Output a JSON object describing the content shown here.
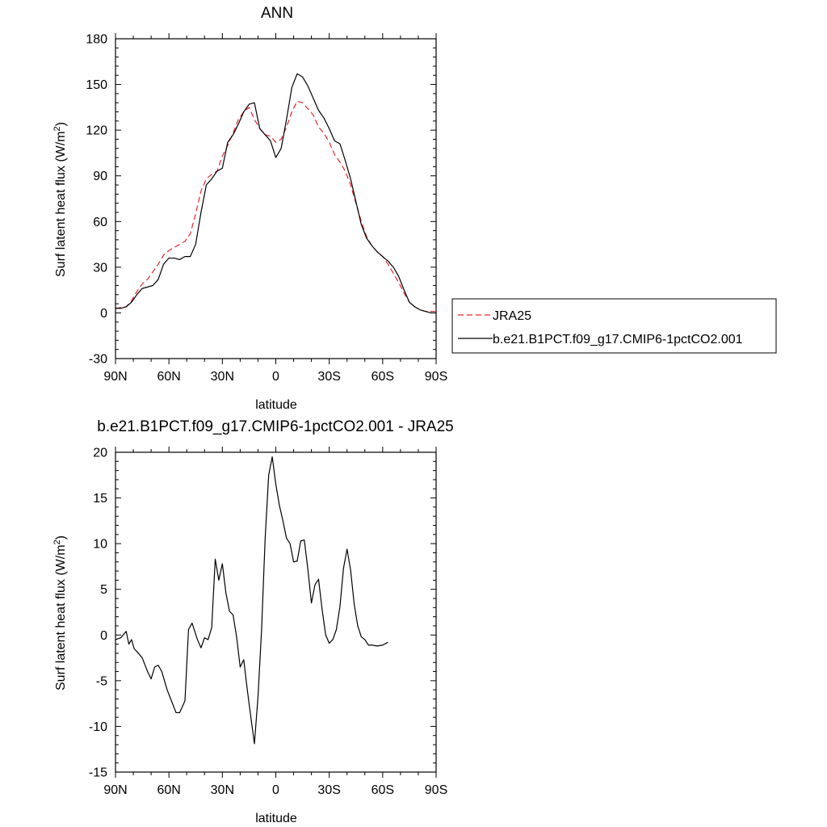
{
  "chart_data": [
    {
      "type": "line",
      "title": "ANN",
      "xlabel": "latitude",
      "ylabel": "Surf latent heat flux (W/m",
      "ylabel_sup": "2",
      "ylabel_close": ")",
      "xlim": [
        90,
        -90
      ],
      "ylim": [
        -30,
        180
      ],
      "xticks": [
        {
          "value": 90,
          "label": "90N"
        },
        {
          "value": 60,
          "label": "60N"
        },
        {
          "value": 30,
          "label": "30N"
        },
        {
          "value": 0,
          "label": "0"
        },
        {
          "value": -30,
          "label": "30S"
        },
        {
          "value": -60,
          "label": "60S"
        },
        {
          "value": -90,
          "label": "90S"
        }
      ],
      "yticks": [
        {
          "value": 180,
          "label": "180"
        },
        {
          "value": 150,
          "label": "150"
        },
        {
          "value": 120,
          "label": "120"
        },
        {
          "value": 90,
          "label": "90"
        },
        {
          "value": 60,
          "label": "60"
        },
        {
          "value": 30,
          "label": "30"
        },
        {
          "value": 0,
          "label": "0"
        },
        {
          "value": -30,
          "label": "-30"
        }
      ],
      "legend_position": "right",
      "series": [
        {
          "name": "JRA25",
          "color": "#e8262b",
          "dash": "dashed",
          "points": [
            [
              90,
              3
            ],
            [
              87,
              3.5
            ],
            [
              84,
              4
            ],
            [
              81,
              8
            ],
            [
              78,
              14
            ],
            [
              75,
              19
            ],
            [
              72,
              22
            ],
            [
              69,
              27
            ],
            [
              66,
              32
            ],
            [
              63,
              38
            ],
            [
              60,
              41
            ],
            [
              57,
              43
            ],
            [
              54,
              45
            ],
            [
              51,
              47
            ],
            [
              48,
              52
            ],
            [
              45,
              65
            ],
            [
              42,
              80
            ],
            [
              39,
              88
            ],
            [
              36,
              91
            ],
            [
              33,
              93
            ],
            [
              30,
              103
            ],
            [
              27,
              110
            ],
            [
              24,
              118
            ],
            [
              21,
              127
            ],
            [
              18,
              132
            ],
            [
              15,
              135
            ],
            [
              12,
              127
            ],
            [
              9,
              121
            ],
            [
              6,
              117
            ],
            [
              3,
              116
            ],
            [
              0,
              112
            ],
            [
              -3,
              114
            ],
            [
              -6,
              122
            ],
            [
              -9,
              132
            ],
            [
              -12,
              139
            ],
            [
              -15,
              138
            ],
            [
              -18,
              134
            ],
            [
              -21,
              130
            ],
            [
              -24,
              122
            ],
            [
              -27,
              118
            ],
            [
              -30,
              112
            ],
            [
              -33,
              104
            ],
            [
              -36,
              99
            ],
            [
              -39,
              93
            ],
            [
              -42,
              84
            ],
            [
              -45,
              72
            ],
            [
              -48,
              60
            ],
            [
              -51,
              50
            ],
            [
              -54,
              44
            ],
            [
              -57,
              40
            ],
            [
              -60,
              37
            ],
            [
              -63,
              32
            ],
            [
              -66,
              26
            ],
            [
              -69,
              20
            ],
            [
              -72,
              13
            ],
            [
              -75,
              7
            ],
            [
              -78,
              4
            ],
            [
              -81,
              2
            ],
            [
              -84,
              1
            ],
            [
              -87,
              1
            ],
            [
              -90,
              1
            ]
          ]
        },
        {
          "name": "b.e21.B1PCT.f09_g17.CMIP6-1pctCO2.001",
          "color": "#000000",
          "dash": "solid",
          "points": [
            [
              90,
              3
            ],
            [
              87,
              3
            ],
            [
              84,
              4
            ],
            [
              81,
              7
            ],
            [
              78,
              12
            ],
            [
              75,
              16
            ],
            [
              72,
              17
            ],
            [
              69,
              18
            ],
            [
              66,
              22
            ],
            [
              63,
              32
            ],
            [
              60,
              36
            ],
            [
              57,
              36
            ],
            [
              54,
              35
            ],
            [
              51,
              37
            ],
            [
              48,
              37
            ],
            [
              45,
              45
            ],
            [
              42,
              66
            ],
            [
              39,
              84
            ],
            [
              36,
              88
            ],
            [
              33,
              93
            ],
            [
              30,
              95
            ],
            [
              27,
              112
            ],
            [
              24,
              117
            ],
            [
              21,
              124
            ],
            [
              18,
              132
            ],
            [
              15,
              137
            ],
            [
              12,
              138
            ],
            [
              9,
              121
            ],
            [
              6,
              117
            ],
            [
              3,
              113
            ],
            [
              0,
              102
            ],
            [
              -3,
              108
            ],
            [
              -6,
              127
            ],
            [
              -9,
              148
            ],
            [
              -12,
              157
            ],
            [
              -15,
              155
            ],
            [
              -18,
              149
            ],
            [
              -21,
              141
            ],
            [
              -24,
              133
            ],
            [
              -27,
              128
            ],
            [
              -30,
              121
            ],
            [
              -33,
              113
            ],
            [
              -36,
              111
            ],
            [
              -39,
              100
            ],
            [
              -42,
              88
            ],
            [
              -45,
              73
            ],
            [
              -48,
              58
            ],
            [
              -51,
              49
            ],
            [
              -54,
              44
            ],
            [
              -57,
              40
            ],
            [
              -60,
              37
            ],
            [
              -63,
              34
            ],
            [
              -66,
              30
            ],
            [
              -69,
              24
            ],
            [
              -72,
              15
            ],
            [
              -75,
              7
            ],
            [
              -78,
              4
            ],
            [
              -81,
              2
            ],
            [
              -84,
              1
            ],
            [
              -87,
              0
            ],
            [
              -90,
              0
            ]
          ]
        }
      ]
    },
    {
      "type": "line",
      "title": "b.e21.B1PCT.f09_g17.CMIP6-1pctCO2.001 - JRA25",
      "xlabel": "latitude",
      "ylabel": "Surf latent heat flux (W/m",
      "ylabel_sup": "2",
      "ylabel_close": ")",
      "xlim": [
        90,
        -90
      ],
      "ylim": [
        -15,
        20
      ],
      "xticks": [
        {
          "value": 90,
          "label": "90N"
        },
        {
          "value": 60,
          "label": "60N"
        },
        {
          "value": 30,
          "label": "30N"
        },
        {
          "value": 0,
          "label": "0"
        },
        {
          "value": -30,
          "label": "30S"
        },
        {
          "value": -60,
          "label": "60S"
        },
        {
          "value": -90,
          "label": "90S"
        }
      ],
      "yticks": [
        {
          "value": 20,
          "label": "20"
        },
        {
          "value": 15,
          "label": "15"
        },
        {
          "value": 10,
          "label": "10"
        },
        {
          "value": 5,
          "label": "5"
        },
        {
          "value": 0,
          "label": "0"
        },
        {
          "value": -5,
          "label": "-5"
        },
        {
          "value": -10,
          "label": "-10"
        },
        {
          "value": -15,
          "label": "-15"
        }
      ],
      "series": [
        {
          "color": "#000000",
          "dash": "solid",
          "points": [
            [
              90,
              -0.5
            ],
            [
              87,
              -0.3
            ],
            [
              84,
              0.4
            ],
            [
              82.5,
              -1
            ],
            [
              81,
              -0.5
            ],
            [
              79.5,
              -1.5
            ],
            [
              78,
              -1.8
            ],
            [
              75,
              -2.5
            ],
            [
              72,
              -4
            ],
            [
              70,
              -4.8
            ],
            [
              68,
              -3.5
            ],
            [
              66,
              -3.3
            ],
            [
              64,
              -4
            ],
            [
              61,
              -6
            ],
            [
              58,
              -7.5
            ],
            [
              56,
              -8.5
            ],
            [
              54,
              -8.5
            ],
            [
              51,
              -7.2
            ],
            [
              49,
              0.6
            ],
            [
              47,
              1.3
            ],
            [
              44,
              -0.5
            ],
            [
              42,
              -1.4
            ],
            [
              40,
              -0.3
            ],
            [
              38,
              -0.5
            ],
            [
              36,
              0.8
            ],
            [
              34,
              8.3
            ],
            [
              32,
              6
            ],
            [
              30,
              7.8
            ],
            [
              28,
              4.6
            ],
            [
              26,
              2.6
            ],
            [
              24,
              2.2
            ],
            [
              22,
              -0.2
            ],
            [
              20,
              -3.5
            ],
            [
              18,
              -2.7
            ],
            [
              16,
              -6
            ],
            [
              14,
              -9
            ],
            [
              12,
              -11.9
            ],
            [
              10,
              -6.8
            ],
            [
              8,
              0.5
            ],
            [
              6,
              10.5
            ],
            [
              4,
              17.5
            ],
            [
              2,
              19.5
            ],
            [
              0,
              16.5
            ],
            [
              -2,
              14.2
            ],
            [
              -4,
              12.5
            ],
            [
              -6,
              10.6
            ],
            [
              -8,
              10
            ],
            [
              -10,
              8
            ],
            [
              -12,
              8.1
            ],
            [
              -14,
              10.3
            ],
            [
              -16,
              10.4
            ],
            [
              -18,
              7.2
            ],
            [
              -20,
              3.5
            ],
            [
              -22,
              5.5
            ],
            [
              -24,
              6.1
            ],
            [
              -26,
              2.8
            ],
            [
              -28,
              0
            ],
            [
              -30,
              -0.9
            ],
            [
              -32,
              -0.5
            ],
            [
              -34,
              0.6
            ],
            [
              -36,
              3.1
            ],
            [
              -38,
              7.3
            ],
            [
              -40,
              9.4
            ],
            [
              -42,
              7.1
            ],
            [
              -44,
              3.4
            ],
            [
              -46,
              1
            ],
            [
              -48,
              -0.2
            ],
            [
              -50,
              -0.5
            ],
            [
              -52,
              -1.1
            ],
            [
              -54,
              -1.1
            ],
            [
              -57,
              -1.2
            ],
            [
              -60,
              -1.1
            ],
            [
              -62,
              -0.9
            ],
            [
              -63,
              -0.8
            ]
          ]
        }
      ]
    }
  ]
}
